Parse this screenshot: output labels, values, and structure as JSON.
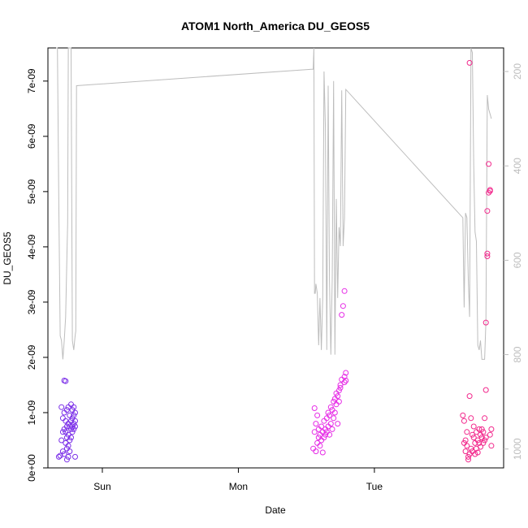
{
  "chart_data": {
    "type": "scatter",
    "title": "ATOM1 North_America DU_GEOS5",
    "xlabel": "Date",
    "ylabel": "DU_GEOS5",
    "x_tick_labels": [
      "Sun",
      "Mon",
      "Tue"
    ],
    "y_ticks": [
      0,
      1e-09,
      2e-09,
      3e-09,
      4e-09,
      5e-09,
      6e-09,
      7e-09
    ],
    "y_tick_labels": [
      "0e+00",
      "1e-09",
      "2e-09",
      "3e-09",
      "4e-09",
      "5e-09",
      "6e-09",
      "7e-09"
    ],
    "ylim": [
      0,
      7.6e-09
    ],
    "y2_ticks": [
      200,
      400,
      600,
      800,
      1000
    ],
    "y2_tick_labels": [
      "200",
      "400",
      "600",
      "800",
      "1000"
    ],
    "y2lim": [
      1040,
      150
    ],
    "x_day_positions": {
      "Sun": 1,
      "Mon": 2,
      "Tue": 3
    },
    "xlim": [
      0.6,
      3.95
    ],
    "colors": {
      "segment1": "#7b2fe8",
      "segment2": "#e62de6",
      "segment3": "#f2288c",
      "pressure_line": "#bdbdbd"
    },
    "scatter_segments": [
      {
        "x": [
          0.68,
          0.69,
          0.7,
          0.7,
          0.71,
          0.71,
          0.71,
          0.72,
          0.72,
          0.72,
          0.72,
          0.73,
          0.73,
          0.73,
          0.73,
          0.74,
          0.74,
          0.74,
          0.74,
          0.74,
          0.75,
          0.75,
          0.75,
          0.75,
          0.75,
          0.76,
          0.76,
          0.76,
          0.76,
          0.77,
          0.77,
          0.77,
          0.77,
          0.78,
          0.78,
          0.78,
          0.78,
          0.79,
          0.79,
          0.79,
          0.79,
          0.8,
          0.8,
          0.8,
          0.8
        ],
        "y": [
          2e-10,
          2.2e-10,
          5e-10,
          1.1e-09,
          3e-10,
          6.5e-10,
          9e-10,
          2.5e-10,
          7e-10,
          1e-09,
          1.58e-09,
          4.5e-10,
          6.5e-10,
          8.5e-10,
          1.57e-09,
          1.5e-10,
          3.5e-10,
          5.5e-10,
          7.5e-10,
          1.05e-09,
          2e-10,
          4e-10,
          6e-10,
          8e-10,
          1.1e-09,
          3e-10,
          5e-10,
          7.5e-10,
          9.5e-10,
          5.5e-10,
          7e-10,
          8.5e-10,
          1.15e-09,
          6.5e-10,
          7.5e-10,
          9e-10,
          1.05e-09,
          7e-10,
          8e-10,
          9.5e-10,
          1.1e-09,
          2e-10,
          7.5e-10,
          8.5e-10,
          1e-09
        ]
      },
      {
        "x": [
          2.55,
          2.56,
          2.56,
          2.57,
          2.57,
          2.58,
          2.58,
          2.59,
          2.59,
          2.6,
          2.6,
          2.61,
          2.61,
          2.62,
          2.62,
          2.63,
          2.63,
          2.64,
          2.64,
          2.65,
          2.65,
          2.66,
          2.66,
          2.67,
          2.67,
          2.68,
          2.68,
          2.69,
          2.69,
          2.7,
          2.7,
          2.71,
          2.71,
          2.72,
          2.72,
          2.73,
          2.73,
          2.74,
          2.74,
          2.75,
          2.75,
          2.76,
          2.76,
          2.77,
          2.78,
          2.78,
          2.78,
          2.79,
          2.79
        ],
        "y": [
          3.5e-10,
          1.08e-09,
          6.5e-10,
          3e-10,
          8e-10,
          4.5e-10,
          9.5e-10,
          5.5e-10,
          7e-10,
          6e-10,
          4e-10,
          7.5e-10,
          5e-10,
          2.8e-10,
          6.5e-10,
          5.5e-10,
          8.5e-10,
          6e-10,
          7e-10,
          9e-10,
          6.5e-10,
          1e-09,
          7.5e-10,
          6e-10,
          9.5e-10,
          8e-10,
          1.1e-09,
          7e-10,
          1.05e-09,
          9e-10,
          1.2e-09,
          1e-09,
          1.25e-09,
          1.15e-09,
          1.35e-09,
          1.3e-09,
          8e-10,
          1.4e-09,
          1.2e-09,
          1.5e-09,
          1.45e-09,
          1.6e-09,
          2.77e-09,
          2.93e-09,
          1.65e-09,
          1.55e-09,
          3.2e-09,
          1.72e-09,
          1.58e-09
        ]
      },
      {
        "x": [
          3.65,
          3.66,
          3.66,
          3.67,
          3.67,
          3.68,
          3.68,
          3.69,
          3.69,
          3.7,
          3.7,
          3.7,
          3.71,
          3.71,
          3.72,
          3.72,
          3.73,
          3.73,
          3.74,
          3.74,
          3.75,
          3.75,
          3.76,
          3.76,
          3.77,
          3.77,
          3.78,
          3.78,
          3.79,
          3.79,
          3.8,
          3.8,
          3.81,
          3.81,
          3.82,
          3.82,
          3.82,
          3.83,
          3.83,
          3.83,
          3.84,
          3.84,
          3.85,
          3.85,
          3.85,
          3.86,
          3.86
        ],
        "y": [
          9.5e-10,
          4.5e-10,
          8.5e-10,
          5e-10,
          3e-10,
          4e-10,
          6.5e-10,
          2e-10,
          1.5e-10,
          7.33e-09,
          1.3e-09,
          2.5e-10,
          3.5e-10,
          9e-10,
          6e-10,
          3e-10,
          5.5e-10,
          7.5e-10,
          2.5e-10,
          4.5e-10,
          3.5e-10,
          6.5e-10,
          5e-10,
          2.8e-10,
          7e-10,
          4.5e-10,
          6e-10,
          3.8e-10,
          5.5e-10,
          7e-10,
          4.5e-10,
          6.5e-10,
          5e-10,
          9e-10,
          1.41e-09,
          2.63e-09,
          5.5e-10,
          3.83e-09,
          3.88e-09,
          4.65e-09,
          5.5e-09,
          4.98e-09,
          5.01e-09,
          5.03e-09,
          6e-10,
          7e-10,
          4e-10
        ]
      }
    ],
    "pressure_line": {
      "x": [
        0.66,
        0.67,
        0.68,
        0.69,
        0.7,
        0.71,
        0.72,
        0.73,
        0.74,
        0.745,
        0.75,
        0.76,
        0.77,
        0.78,
        0.79,
        0.8,
        0.805,
        0.81,
        2.55,
        2.555,
        2.56,
        2.565,
        2.57,
        2.58,
        2.59,
        2.6,
        2.61,
        2.62,
        2.63,
        2.64,
        2.65,
        2.66,
        2.67,
        2.68,
        2.69,
        2.7,
        2.71,
        2.72,
        2.73,
        2.74,
        2.75,
        2.76,
        2.77,
        2.78,
        2.79,
        3.65,
        3.66,
        3.67,
        3.68,
        3.69,
        3.7,
        3.71,
        3.72,
        3.73,
        3.74,
        3.75,
        3.76,
        3.77,
        3.78,
        3.79,
        3.8,
        3.81,
        3.82,
        3.83,
        3.84,
        3.85,
        3.86
      ],
      "y": [
        150,
        150,
        480,
        760,
        770,
        810,
        770,
        720,
        590,
        520,
        150,
        150,
        150,
        770,
        790,
        760,
        750,
        230,
        195,
        150,
        670,
        670,
        650,
        670,
        780,
        680,
        790,
        680,
        200,
        320,
        790,
        230,
        640,
        800,
        640,
        220,
        800,
        470,
        680,
        530,
        570,
        240,
        570,
        510,
        238,
        510,
        700,
        500,
        510,
        640,
        720,
        150,
        160,
        400,
        540,
        560,
        780,
        790,
        770,
        810,
        810,
        810,
        730,
        250,
        280,
        290,
        300
      ]
    }
  }
}
